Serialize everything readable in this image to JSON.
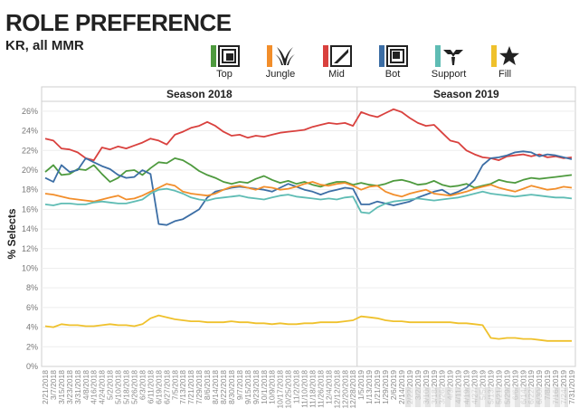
{
  "header": {
    "title": "ROLE PREFERENCE",
    "subtitle": "KR, all MMR"
  },
  "legend": [
    {
      "label": "Top",
      "color": "#4e9a3e",
      "icon": "top-lane-icon"
    },
    {
      "label": "Jungle",
      "color": "#f28e2b",
      "icon": "jungle-icon"
    },
    {
      "label": "Mid",
      "color": "#d9413e",
      "icon": "mid-lane-icon"
    },
    {
      "label": "Bot",
      "color": "#3c6ea5",
      "icon": "bot-lane-icon"
    },
    {
      "label": "Support",
      "color": "#5fbcb4",
      "icon": "support-icon"
    },
    {
      "label": "Fill",
      "color": "#efc12c",
      "icon": "star-icon"
    }
  ],
  "chart_data": {
    "type": "line",
    "ylabel": "% Selects",
    "xlabel": "",
    "ylim": [
      0,
      27
    ],
    "yticks": [
      "0%",
      "2%",
      "4%",
      "6%",
      "8%",
      "10%",
      "12%",
      "14%",
      "16%",
      "18%",
      "20%",
      "22%",
      "24%",
      "26%"
    ],
    "season_labels": [
      "Season 2018",
      "Season 2019"
    ],
    "x": [
      "2/21/2018",
      "3/7/2018",
      "3/15/2018",
      "3/23/2018",
      "3/31/2018",
      "4/8/2018",
      "4/16/2018",
      "4/24/2018",
      "5/2/2018",
      "5/10/2018",
      "5/18/2018",
      "5/26/2018",
      "6/3/2018",
      "6/11/2018",
      "6/19/2018",
      "6/27/2018",
      "7/5/2018",
      "7/13/2018",
      "7/21/2018",
      "7/29/2018",
      "8/6/2018",
      "8/14/2018",
      "8/22/2018",
      "8/30/2018",
      "9/7/2018",
      "9/15/2018",
      "9/23/2018",
      "10/1/2018",
      "10/9/2018",
      "10/17/2018",
      "10/25/2018",
      "11/2/2018",
      "11/10/2018",
      "11/18/2018",
      "11/26/2018",
      "12/4/2018",
      "12/12/2018",
      "12/20/2018",
      "12/28/2018",
      "1/5/2019",
      "1/13/2019",
      "1/21/2019",
      "1/29/2019",
      "2/6/2019",
      "2/14/2019",
      "2/22/2019",
      "3/2/2019",
      "3/10/2019",
      "3/18/2019",
      "3/26/2019",
      "4/3/2019",
      "4/11/2019",
      "4/19/2019",
      "4/27/2019",
      "5/5/2019",
      "5/13/2019",
      "5/21/2019",
      "5/29/2019",
      "6/6/2019",
      "6/14/2019",
      "6/22/2019",
      "6/30/2019",
      "7/8/2019",
      "7/16/2019",
      "7/24/2019",
      "7/31/2019"
    ],
    "tick_labels_visible": [
      "2/21/2018",
      "3/7/2018",
      "3/15/2018",
      "3/23/2018",
      "3/31/2018",
      "4/8/2018",
      "4/16/2018",
      "4/24/2018",
      "5/2/2018",
      "5/10/2018",
      "5/18/2018",
      "5/26/2018",
      "6/3/2018",
      "6/11/2018",
      "6/19/2018",
      "6/27/2018",
      "7/5/2018",
      "7/13/2018",
      "7/21/2018",
      "7/29/2018",
      "8/6/2018",
      "8/14/2018",
      "8/22/2018",
      "8/30/2018",
      "9/7/2018",
      "9/15/2018",
      "9/23/2018",
      "10/1/2018",
      "10/9/2018",
      "10/17/2018",
      "10/25/2018",
      "11/2/2018",
      "11/10/2018",
      "11/18/2018",
      "11/26/2018",
      "12/4/2018",
      "12/12/2018",
      "12/20/2018",
      "12/28/2018",
      "1/5/2019",
      "1/13/2019",
      "1/21/2019",
      "1/29/2019",
      "2/6/2019",
      "2/14/2019",
      "2/22/2019",
      "3/2/2019",
      "3/10/2019",
      "3/18/2019",
      "3/26/2019",
      "4/3/2019",
      "4/11/2019",
      "4/19/2019",
      "4/27/2019",
      "5/5/2019",
      "5/13/2019",
      "5/21/2019",
      "5/29/2019",
      "6/6/2019",
      "6/14/2019",
      "6/22/2019",
      "6/30/2019",
      "7/8/2019",
      "7/16/2019",
      "7/24/2019",
      "7/31/2019"
    ],
    "season_split_x": "1/5/2019",
    "series": [
      {
        "name": "Mid",
        "color": "#d9413e",
        "values": [
          23.2,
          23.0,
          22.2,
          22.1,
          21.8,
          21.2,
          21.0,
          22.3,
          22.1,
          22.4,
          22.2,
          22.5,
          22.8,
          23.2,
          23.0,
          22.6,
          23.6,
          23.9,
          24.3,
          24.5,
          24.9,
          24.5,
          23.9,
          23.5,
          23.6,
          23.3,
          23.5,
          23.4,
          23.6,
          23.8,
          23.9,
          24.0,
          24.1,
          24.4,
          24.6,
          24.8,
          24.7,
          24.8,
          24.5,
          25.9,
          25.6,
          25.4,
          25.8,
          26.2,
          25.9,
          25.3,
          24.8,
          24.5,
          24.6,
          23.8,
          23.0,
          22.8,
          22.0,
          21.6,
          21.3,
          21.2,
          21.0,
          21.4,
          21.5,
          21.6,
          21.4,
          21.6,
          21.3,
          21.4,
          21.2,
          21.3
        ]
      },
      {
        "name": "Top",
        "color": "#4e9a3e",
        "values": [
          19.8,
          20.5,
          19.5,
          19.6,
          20.1,
          20.0,
          20.5,
          19.6,
          18.8,
          19.2,
          19.9,
          20.0,
          19.5,
          20.2,
          20.8,
          20.7,
          21.2,
          21.0,
          20.5,
          19.9,
          19.5,
          19.2,
          18.8,
          18.6,
          18.8,
          18.7,
          19.1,
          19.4,
          19.0,
          18.7,
          18.9,
          18.6,
          18.8,
          18.5,
          18.3,
          18.6,
          18.8,
          18.8,
          18.5,
          18.7,
          18.5,
          18.4,
          18.6,
          18.9,
          19.0,
          18.8,
          18.5,
          18.6,
          18.9,
          18.5,
          18.3,
          18.4,
          18.6,
          18.2,
          18.4,
          18.6,
          19.0,
          18.8,
          18.7,
          19.0,
          19.2,
          19.1,
          19.2,
          19.3,
          19.4,
          19.5
        ]
      },
      {
        "name": "Bot",
        "color": "#3c6ea5",
        "values": [
          19.2,
          18.8,
          20.5,
          19.8,
          20.0,
          21.2,
          20.8,
          20.4,
          20.1,
          19.5,
          19.2,
          19.3,
          20.0,
          19.6,
          14.5,
          14.4,
          14.8,
          15.0,
          15.5,
          16.0,
          17.2,
          17.8,
          18.0,
          18.2,
          18.3,
          18.2,
          18.1,
          18.0,
          17.8,
          18.2,
          18.6,
          18.3,
          18.0,
          17.8,
          17.5,
          17.8,
          18.0,
          18.2,
          18.1,
          16.5,
          16.5,
          16.8,
          16.6,
          16.4,
          16.6,
          16.8,
          17.2,
          17.5,
          17.8,
          18.0,
          17.5,
          17.8,
          18.2,
          19.0,
          20.5,
          21.2,
          21.3,
          21.5,
          21.8,
          21.9,
          21.8,
          21.4,
          21.6,
          21.5,
          21.3,
          21.1
        ]
      },
      {
        "name": "Jungle",
        "color": "#f28e2b",
        "values": [
          17.6,
          17.5,
          17.3,
          17.1,
          17.0,
          16.9,
          16.8,
          17.0,
          17.2,
          17.4,
          17.0,
          17.1,
          17.4,
          17.8,
          18.2,
          18.6,
          18.4,
          17.8,
          17.6,
          17.5,
          17.4,
          17.6,
          18.0,
          18.3,
          18.4,
          18.2,
          18.0,
          18.3,
          18.2,
          18.0,
          18.1,
          18.3,
          18.6,
          18.8,
          18.5,
          18.4,
          18.6,
          18.7,
          18.4,
          18.0,
          18.3,
          18.4,
          17.8,
          17.5,
          17.3,
          17.6,
          17.8,
          18.0,
          17.6,
          17.5,
          17.4,
          17.6,
          17.8,
          18.1,
          18.3,
          18.5,
          18.2,
          18.0,
          17.8,
          18.1,
          18.4,
          18.2,
          18.0,
          18.1,
          18.3,
          18.2
        ]
      },
      {
        "name": "Support",
        "color": "#5fbcb4",
        "values": [
          16.5,
          16.4,
          16.6,
          16.6,
          16.5,
          16.5,
          16.7,
          16.8,
          16.7,
          16.6,
          16.6,
          16.8,
          17.0,
          17.6,
          18.0,
          18.1,
          17.9,
          17.6,
          17.2,
          17.0,
          16.9,
          17.1,
          17.2,
          17.3,
          17.4,
          17.2,
          17.1,
          17.0,
          17.2,
          17.4,
          17.5,
          17.3,
          17.2,
          17.1,
          17.0,
          17.1,
          17.0,
          17.2,
          17.3,
          15.7,
          15.6,
          16.2,
          16.6,
          16.8,
          16.9,
          17.0,
          17.1,
          17.0,
          16.9,
          17.0,
          17.1,
          17.2,
          17.4,
          17.6,
          17.8,
          17.6,
          17.5,
          17.4,
          17.3,
          17.4,
          17.5,
          17.4,
          17.3,
          17.2,
          17.2,
          17.1
        ]
      },
      {
        "name": "Fill",
        "color": "#efc12c",
        "values": [
          4.1,
          4.0,
          4.3,
          4.2,
          4.2,
          4.1,
          4.1,
          4.2,
          4.3,
          4.2,
          4.2,
          4.1,
          4.3,
          4.9,
          5.2,
          5.0,
          4.8,
          4.7,
          4.6,
          4.6,
          4.5,
          4.5,
          4.5,
          4.6,
          4.5,
          4.5,
          4.4,
          4.4,
          4.3,
          4.4,
          4.3,
          4.3,
          4.4,
          4.4,
          4.5,
          4.5,
          4.5,
          4.6,
          4.7,
          5.1,
          5.0,
          4.9,
          4.7,
          4.6,
          4.6,
          4.5,
          4.5,
          4.5,
          4.5,
          4.5,
          4.5,
          4.4,
          4.4,
          4.3,
          4.2,
          2.9,
          2.8,
          2.9,
          2.9,
          2.8,
          2.8,
          2.7,
          2.6,
          2.6,
          2.6,
          2.6
        ]
      }
    ]
  }
}
